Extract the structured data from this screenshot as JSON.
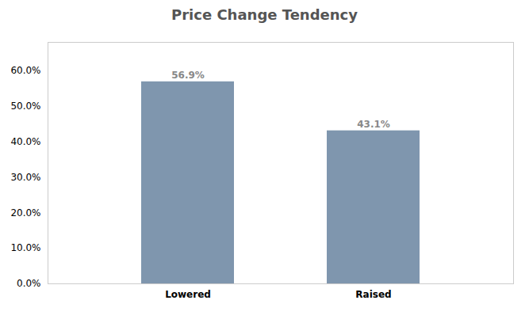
{
  "chart_data": {
    "type": "bar",
    "title": "Price Change Tendency",
    "categories": [
      "Lowered",
      "Raised"
    ],
    "values": [
      0.569,
      0.431
    ],
    "value_labels": [
      "56.9%",
      "43.1%"
    ],
    "data_labels": true,
    "color": "#7f96ae",
    "ylim": [
      0,
      0.68
    ],
    "yticks": [
      {
        "value": 0,
        "label": "0.0%"
      },
      {
        "value": 0.1,
        "label": "10.0%"
      },
      {
        "value": 0.2,
        "label": "20.0%"
      },
      {
        "value": 0.3,
        "label": "30.0%"
      },
      {
        "value": 0.4,
        "label": "40.0%"
      },
      {
        "value": 0.5,
        "label": "50.0%"
      },
      {
        "value": 0.6,
        "label": "60.0%"
      }
    ],
    "grid": false
  }
}
